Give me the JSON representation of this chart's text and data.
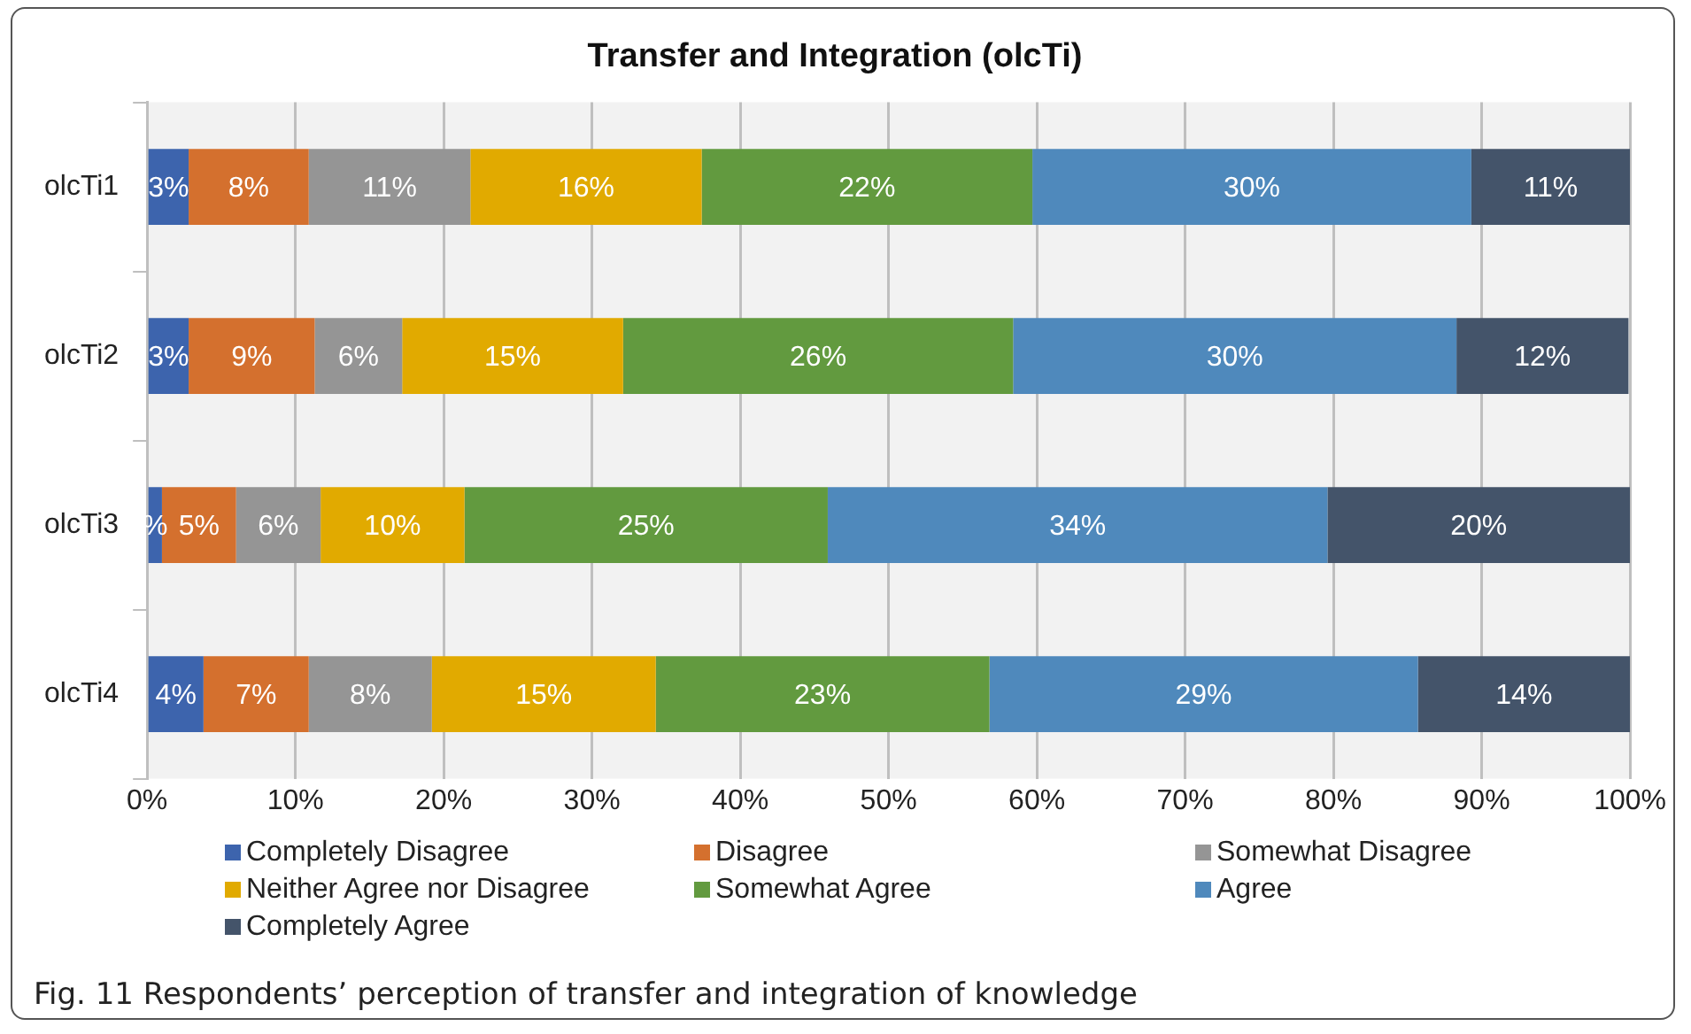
{
  "chart_data": {
    "type": "bar",
    "orientation": "horizontal",
    "stacked": true,
    "title": "Transfer and Integration (olcTi)",
    "categories": [
      "olcTi1",
      "olcTi2",
      "olcTi3",
      "olcTi4"
    ],
    "series": [
      {
        "name": "Completely Disagree",
        "color": "#3d64ad",
        "values": [
          2.8,
          2.8,
          1.0,
          3.8
        ],
        "value_labels": [
          "3%",
          "3%",
          "%",
          "4%"
        ]
      },
      {
        "name": "Disagree",
        "color": "#d4702e",
        "values": [
          8.1,
          8.5,
          5.0,
          7.1
        ],
        "value_labels": [
          "8%",
          "9%",
          "5%",
          "7%"
        ]
      },
      {
        "name": "Somewhat Disagree",
        "color": "#959595",
        "values": [
          10.9,
          5.9,
          5.7,
          8.3
        ],
        "value_labels": [
          "11%",
          "6%",
          "6%",
          "8%"
        ]
      },
      {
        "name": "Neither Agree nor Disagree",
        "color": "#e1aa00",
        "values": [
          15.6,
          14.9,
          9.7,
          15.1
        ],
        "value_labels": [
          "16%",
          "15%",
          "10%",
          "15%"
        ]
      },
      {
        "name": "Somewhat Agree",
        "color": "#629a3f",
        "values": [
          22.3,
          26.3,
          24.5,
          22.5
        ],
        "value_labels": [
          "22%",
          "26%",
          "25%",
          "23%"
        ]
      },
      {
        "name": "Agree",
        "color": "#4f89bc",
        "values": [
          29.6,
          29.9,
          33.7,
          28.9
        ],
        "value_labels": [
          "30%",
          "30%",
          "34%",
          "29%"
        ]
      },
      {
        "name": "Completely Agree",
        "color": "#44546a",
        "values": [
          10.7,
          11.6,
          20.4,
          14.3
        ],
        "value_labels": [
          "11%",
          "12%",
          "20%",
          "14%"
        ]
      }
    ],
    "xlim": [
      0,
      100
    ],
    "xticks": [
      {
        "value": 0,
        "label": "0%"
      },
      {
        "value": 10,
        "label": "10%"
      },
      {
        "value": 20,
        "label": "20%"
      },
      {
        "value": 30,
        "label": "30%"
      },
      {
        "value": 40,
        "label": "40%"
      },
      {
        "value": 50,
        "label": "50%"
      },
      {
        "value": 60,
        "label": "60%"
      },
      {
        "value": 70,
        "label": "70%"
      },
      {
        "value": 80,
        "label": "80%"
      },
      {
        "value": 90,
        "label": "90%"
      },
      {
        "value": 100,
        "label": "100%"
      }
    ],
    "grid": "x",
    "legend": "bottom",
    "annotations": [
      "Fig. 11  Respondents’ perception of transfer and integration of knowledge"
    ]
  }
}
